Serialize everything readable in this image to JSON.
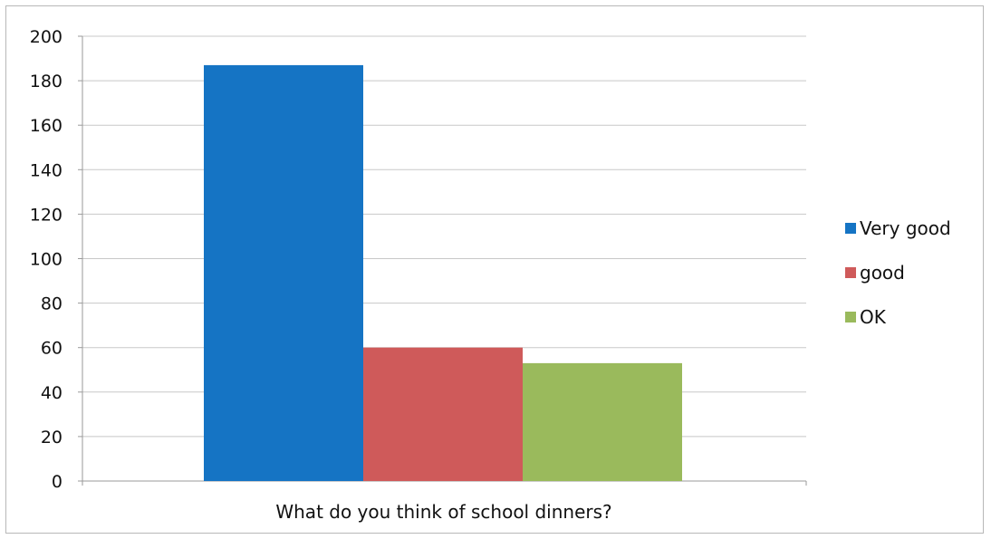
{
  "chart_data": {
    "type": "bar",
    "xlabel": "What do you think of school dinners?",
    "ylabel": "",
    "ylim": [
      0,
      200
    ],
    "yticks": [
      0,
      20,
      40,
      60,
      80,
      100,
      120,
      140,
      160,
      180,
      200
    ],
    "grid": true,
    "legend_position": "right",
    "series": [
      {
        "name": "Very good",
        "values": [
          187
        ],
        "color": "#1574c4"
      },
      {
        "name": "good",
        "values": [
          60
        ],
        "color": "#cf5a5a"
      },
      {
        "name": "OK",
        "values": [
          53
        ],
        "color": "#9aba5c"
      }
    ]
  }
}
